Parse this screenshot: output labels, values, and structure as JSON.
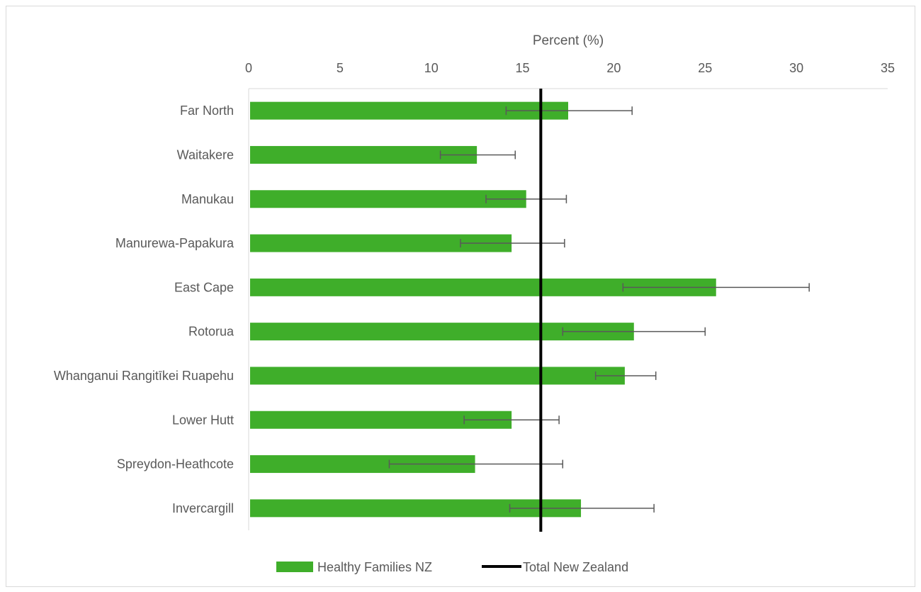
{
  "chart_data": {
    "type": "bar",
    "orientation": "horizontal",
    "xlabel": "Percent (%)",
    "xlim": [
      0,
      35
    ],
    "x_ticks": [
      "0",
      "5",
      "10",
      "15",
      "20",
      "25",
      "30",
      "35"
    ],
    "categories": [
      "Far North",
      "Waitakere",
      "Manukau",
      "Manurewa-Papakura",
      "East Cape",
      "Rotorua",
      "Whanganui Rangitīkei Ruapehu",
      "Lower Hutt",
      "Spreydon-Heathcote",
      "Invercargill"
    ],
    "series": [
      {
        "name": "Healthy Families NZ",
        "color": "#3fae2a",
        "values": [
          17.5,
          12.5,
          15.2,
          14.4,
          25.6,
          21.1,
          20.6,
          14.4,
          12.4,
          18.2
        ],
        "error_low": [
          14.1,
          10.5,
          13.0,
          11.6,
          20.5,
          17.2,
          19.0,
          11.8,
          7.7,
          14.3
        ],
        "error_high": [
          21.0,
          14.6,
          17.4,
          17.3,
          30.7,
          25.0,
          22.3,
          17.0,
          17.2,
          22.2
        ]
      }
    ],
    "reference_line": {
      "name": "Total New Zealand",
      "value": 16.0,
      "color": "#000000"
    },
    "legend": {
      "position": "bottom",
      "items": [
        "Healthy Families NZ",
        "Total New Zealand"
      ]
    },
    "grid": false
  }
}
